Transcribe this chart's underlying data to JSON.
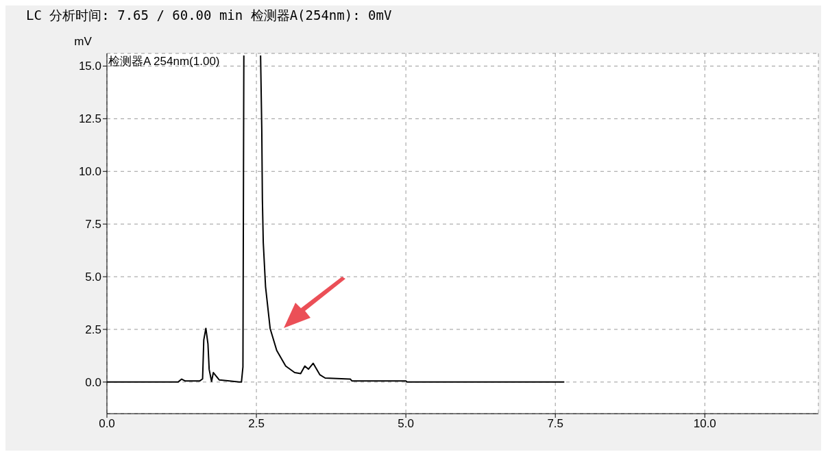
{
  "chart_data": {
    "type": "line",
    "title": "LC 分析时间: 7.65 / 60.00 min 检测器A(254nm): 0mV",
    "ylabel": "mV",
    "x": [
      0,
      1.19,
      1.25,
      1.31,
      1.55,
      1.6,
      1.62,
      1.655,
      1.69,
      1.71,
      1.75,
      1.78,
      1.88,
      2.05,
      2.21,
      2.25,
      2.275,
      2.29,
      2.43,
      2.57,
      2.59,
      2.6,
      2.615,
      2.653,
      2.73,
      2.84,
      2.99,
      3.14,
      3.24,
      3.31,
      3.37,
      3.45,
      3.56,
      3.65,
      4.07,
      4.1,
      5.0,
      5.02,
      7.65
    ],
    "series": [
      {
        "name": "检测器A 254nm(1.00)",
        "color": "#000000",
        "values": [
          0,
          0,
          0.14,
          0.05,
          0.05,
          0.15,
          2.0,
          2.55,
          1.8,
          0.6,
          0.03,
          0.45,
          0.1,
          0.05,
          0,
          0,
          0.72,
          15.5,
          null,
          15.5,
          12,
          8.7,
          6.62,
          4.53,
          2.54,
          1.5,
          0.76,
          0.45,
          0.4,
          0.76,
          0.61,
          0.89,
          0.35,
          0.19,
          0.14,
          0.05,
          0.05,
          0,
          0
        ]
      }
    ],
    "xlim": [
      0,
      11.9
    ],
    "ylim": [
      -1.5,
      15.6
    ],
    "xticks": [
      {
        "value": 0,
        "label": "0.0"
      },
      {
        "value": 2.5,
        "label": "2.5"
      },
      {
        "value": 5,
        "label": "5.0"
      },
      {
        "value": 7.5,
        "label": "7.5"
      },
      {
        "value": 10,
        "label": "10.0"
      }
    ],
    "yticks": [
      {
        "value": 0,
        "label": "0.0"
      },
      {
        "value": 2.5,
        "label": "2.5"
      },
      {
        "value": 5,
        "label": "5.0"
      },
      {
        "value": 7.5,
        "label": "7.5"
      },
      {
        "value": 10,
        "label": "10.0"
      },
      {
        "value": 12.5,
        "label": "12.5"
      },
      {
        "value": 15,
        "label": "15.0"
      }
    ],
    "grid": true,
    "legend": "top left",
    "line_style": "solid"
  }
}
